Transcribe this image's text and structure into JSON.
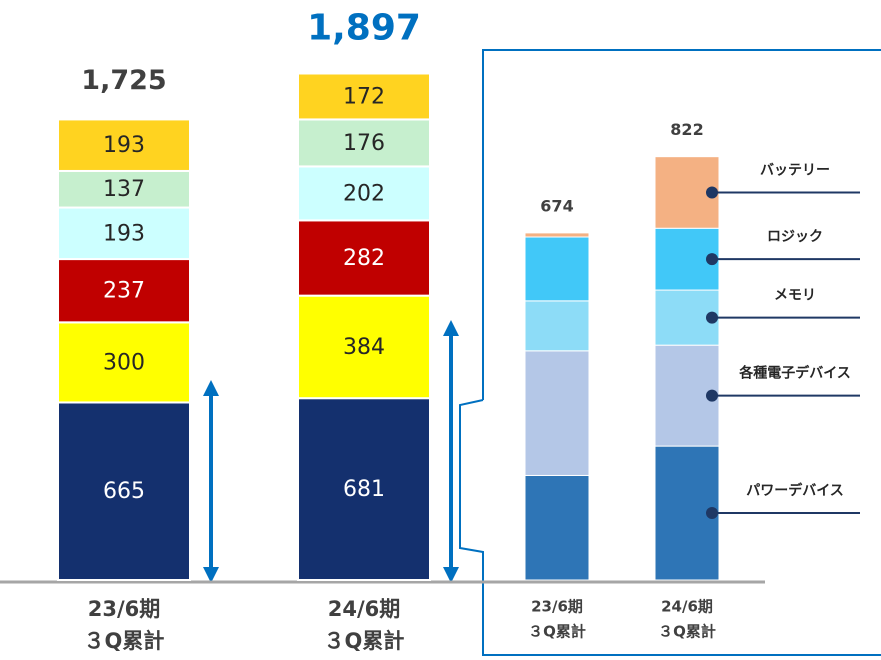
{
  "chart_data": [
    {
      "type": "stacked_bar",
      "categories": [
        [
          "23/6期",
          "３Q累計"
        ],
        [
          "24/6期",
          "３Q累計"
        ]
      ],
      "series": [
        {
          "color": "#14306e",
          "values": [
            665,
            681
          ]
        },
        {
          "color": "#ffff00",
          "values": [
            300,
            384
          ]
        },
        {
          "color": "#c00000",
          "values": [
            237,
            282
          ]
        },
        {
          "color": "#ccffff",
          "values": [
            193,
            202
          ]
        },
        {
          "color": "#c6efce",
          "values": [
            137,
            176
          ]
        },
        {
          "color": "#ffd320",
          "values": [
            193,
            172
          ]
        }
      ],
      "totals": [
        1725,
        1897
      ],
      "total_labels": [
        "1,725",
        "1,897"
      ],
      "total_colors": [
        "#404040",
        "#0070c0"
      ]
    },
    {
      "type": "stacked_bar",
      "categories": [
        [
          "23/6期",
          "３Q累計"
        ],
        [
          "24/6期",
          "３Q累計"
        ]
      ],
      "series": [
        {
          "name": "パワーデバイス",
          "color": "#2e75b6",
          "values": [
            203,
            260
          ]
        },
        {
          "name": "各種電子デバイス",
          "color": "#b4c7e7",
          "values": [
            242,
            196
          ]
        },
        {
          "name": "メモリ",
          "color": "#8ddcf7",
          "values": [
            97,
            107
          ]
        },
        {
          "name": "ロジック",
          "color": "#41c8f8",
          "values": [
            124,
            120
          ]
        },
        {
          "name": "バッテリー",
          "color": "#f4b183",
          "values": [
            8,
            139
          ]
        }
      ],
      "totals": [
        674,
        822
      ],
      "total_colors": [
        "#404040",
        "#404040"
      ]
    }
  ]
}
